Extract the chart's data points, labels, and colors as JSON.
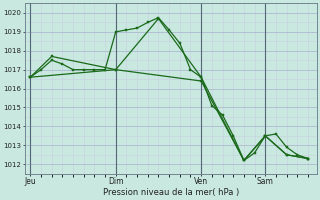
{
  "background_color": "#c8e8e0",
  "grid_color_major": "#b0b8d0",
  "grid_color_minor": "#c8d0e0",
  "line_color": "#1a6a1a",
  "marker_color": "#1a6a1a",
  "xlabel": "Pression niveau de la mer( hPa )",
  "ylim": [
    1011.5,
    1020.5
  ],
  "yticks": [
    1012,
    1013,
    1014,
    1015,
    1016,
    1017,
    1018,
    1019,
    1020
  ],
  "xtick_labels": [
    "Jeu",
    "Dim",
    "Ven",
    "Sam"
  ],
  "xtick_positions": [
    0,
    8,
    16,
    22
  ],
  "vline_positions": [
    0,
    8,
    16,
    22
  ],
  "series": [
    {
      "x": [
        0,
        1,
        2,
        3,
        4,
        5,
        6,
        7,
        8,
        9,
        10,
        11,
        12,
        13,
        14,
        15,
        16,
        17,
        18,
        19,
        20,
        21,
        22,
        23,
        24,
        25,
        26
      ],
      "y": [
        1016.6,
        1017.0,
        1017.5,
        1017.3,
        1017.0,
        1017.0,
        1017.0,
        1017.0,
        1019.0,
        1019.1,
        1019.2,
        1019.5,
        1019.75,
        1019.1,
        1018.4,
        1017.0,
        1016.6,
        1015.1,
        1014.6,
        1013.5,
        1012.2,
        1012.6,
        1013.5,
        1013.6,
        1012.9,
        1012.5,
        1012.3
      ]
    },
    {
      "x": [
        0,
        2,
        8,
        12,
        16,
        20,
        22,
        24,
        26
      ],
      "y": [
        1016.6,
        1017.7,
        1017.0,
        1019.7,
        1016.6,
        1012.2,
        1013.5,
        1012.5,
        1012.3
      ]
    },
    {
      "x": [
        0,
        8,
        16,
        20,
        22,
        24,
        26
      ],
      "y": [
        1016.6,
        1017.0,
        1016.4,
        1012.2,
        1013.5,
        1012.5,
        1012.3
      ]
    }
  ]
}
